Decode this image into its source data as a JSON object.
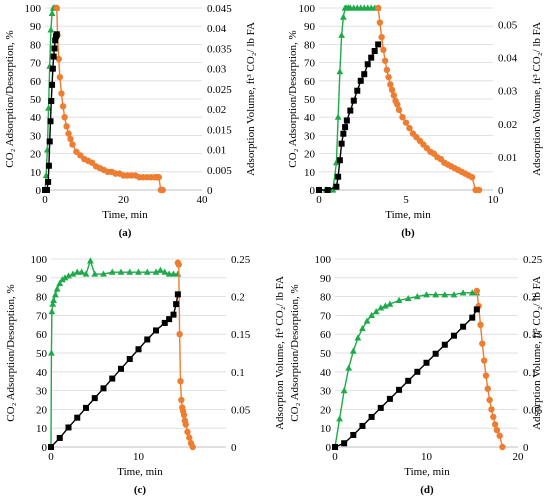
{
  "colors": {
    "adsorption": "#1faa4a",
    "desorption": "#ed7d31",
    "volume": "#000000",
    "grid": "#d9d9d9",
    "axis": "#bfbfbf"
  },
  "chart_data": [
    {
      "id": "a",
      "type": "scatter",
      "panel_label": "(a)",
      "xlabel": "Time, min",
      "ylabel_left": "CO₂ Adsorption/Desorption, %",
      "ylabel_right": "Adsorption Volume, ft³ CO₂/ lb FA",
      "xlim": [
        0,
        40
      ],
      "ylim": [
        0,
        100
      ],
      "y2lim": [
        0,
        0.045
      ],
      "x_ticks": [
        0,
        20,
        40
      ],
      "y_ticks": [
        0,
        10,
        20,
        30,
        40,
        50,
        60,
        70,
        80,
        90,
        100
      ],
      "y2_ticks": [
        0,
        0.005,
        0.01,
        0.015,
        0.02,
        0.025,
        0.03,
        0.035,
        0.04,
        0.045
      ],
      "y2_tick_labels": [
        "0",
        "0.005",
        "0.01",
        "0.015",
        "0.02",
        "0.025",
        "0.03",
        "0.035",
        "0.04",
        "0.045"
      ],
      "grid": true,
      "series": [
        {
          "key": "adsorption",
          "marker": "triangle",
          "axis": "left",
          "x": [
            0,
            0.3,
            0.6,
            0.9,
            1.2,
            1.5,
            1.8,
            2.1,
            2.4,
            2.7,
            3.0
          ],
          "y": [
            0,
            8,
            22,
            45,
            68,
            88,
            97,
            100,
            100,
            100,
            100
          ]
        },
        {
          "key": "desorption",
          "marker": "circle",
          "axis": "left",
          "x": [
            3.0,
            3.2,
            3.5,
            3.8,
            4.2,
            4.6,
            5.0,
            5.5,
            6.0,
            6.5,
            7.0,
            8.0,
            9.0,
            10.0,
            11.0,
            12.0,
            13.0,
            14.0,
            15.0,
            16.0,
            17.0,
            18.0,
            19.0,
            20.0,
            21.0,
            22.0,
            23.0,
            24.0,
            25.0,
            26.0,
            27.0,
            28.0,
            28.5,
            29.0,
            29.5,
            30.0
          ],
          "y": [
            100,
            85,
            72,
            62,
            53,
            46,
            40,
            35,
            31,
            28,
            25,
            21,
            19,
            17,
            16,
            15,
            13,
            12,
            11,
            10,
            10,
            9,
            9,
            8,
            8,
            8,
            8,
            7,
            7,
            7,
            7,
            7,
            7,
            7,
            0,
            0
          ]
        },
        {
          "key": "volume",
          "marker": "square",
          "axis": "right",
          "x": [
            0,
            0.5,
            0.8,
            1.0,
            1.2,
            1.4,
            1.6,
            1.8,
            2.0,
            2.2,
            2.4,
            2.6,
            2.8,
            3.0
          ],
          "y": [
            0,
            0,
            0.002,
            0.006,
            0.012,
            0.017,
            0.022,
            0.026,
            0.03,
            0.033,
            0.035,
            0.037,
            0.038,
            0.0385
          ]
        }
      ]
    },
    {
      "id": "b",
      "type": "scatter",
      "panel_label": "(b)",
      "xlabel": "Time, min",
      "ylabel_left": "CO₂ Adsorption/Desorption, %",
      "ylabel_right": "Adsorption Volume, ft³ CO₂/ lb FA",
      "xlim": [
        0,
        10
      ],
      "ylim": [
        0,
        100
      ],
      "y2lim": [
        0,
        0.055
      ],
      "x_ticks": [
        0,
        5,
        10
      ],
      "y_ticks": [
        0,
        10,
        20,
        30,
        40,
        50,
        60,
        70,
        80,
        90,
        100
      ],
      "y2_ticks": [
        0,
        0.01,
        0.02,
        0.03,
        0.04,
        0.05
      ],
      "y2_tick_labels": [
        "0",
        "0.01",
        "0.02",
        "0.03",
        "0.04",
        "0.05"
      ],
      "grid": true,
      "series": [
        {
          "key": "adsorption",
          "marker": "triangle",
          "axis": "left",
          "x": [
            0,
            0.4,
            0.8,
            1.0,
            1.1,
            1.2,
            1.3,
            1.4,
            1.5,
            1.6,
            1.7,
            1.8,
            2.0,
            2.2,
            2.4,
            2.6,
            2.8,
            3.0,
            3.2,
            3.4
          ],
          "y": [
            0,
            0,
            0,
            15,
            40,
            65,
            85,
            95,
            100,
            100,
            100,
            100,
            100,
            100,
            100,
            100,
            100,
            100,
            100,
            100
          ]
        },
        {
          "key": "desorption",
          "marker": "circle",
          "axis": "left",
          "x": [
            3.4,
            3.5,
            3.6,
            3.7,
            3.8,
            3.9,
            4.0,
            4.1,
            4.2,
            4.3,
            4.4,
            4.5,
            4.6,
            4.8,
            5.0,
            5.2,
            5.4,
            5.6,
            5.8,
            6.0,
            6.2,
            6.4,
            6.6,
            6.8,
            7.0,
            7.2,
            7.4,
            7.6,
            7.8,
            8.0,
            8.2,
            8.4,
            8.6,
            8.8,
            9.0,
            9.2
          ],
          "y": [
            100,
            92,
            84,
            77,
            71,
            66,
            62,
            58,
            55,
            52,
            49,
            47,
            44,
            40,
            37,
            34,
            31,
            29,
            27,
            25,
            23,
            21,
            20,
            18,
            17,
            15,
            14,
            13,
            12,
            11,
            10,
            9,
            8,
            7,
            0,
            0
          ]
        },
        {
          "key": "volume",
          "marker": "square",
          "axis": "right",
          "x": [
            0,
            0.5,
            1.0,
            1.1,
            1.2,
            1.3,
            1.4,
            1.5,
            1.6,
            1.8,
            2.0,
            2.2,
            2.4,
            2.6,
            2.8,
            3.0,
            3.2,
            3.4
          ],
          "y": [
            0,
            0,
            0.001,
            0.004,
            0.009,
            0.014,
            0.017,
            0.019,
            0.021,
            0.024,
            0.027,
            0.03,
            0.033,
            0.035,
            0.038,
            0.04,
            0.042,
            0.044
          ]
        }
      ]
    },
    {
      "id": "c",
      "type": "scatter",
      "panel_label": "(c)",
      "xlabel": "Time, min",
      "ylabel_left": "CO₂ Adsorption/Desorption, %",
      "ylabel_right": "Adsorption Volume, ft³ CO₂/ lb FA",
      "xlim": [
        0,
        20
      ],
      "ylim": [
        0,
        100
      ],
      "y2lim": [
        0,
        0.25
      ],
      "x_ticks": [
        0,
        10
      ],
      "y_ticks": [
        0,
        10,
        20,
        30,
        40,
        50,
        60,
        70,
        80,
        90,
        100
      ],
      "y2_ticks": [
        0,
        0.05,
        0.1,
        0.15,
        0.2,
        0.25
      ],
      "y2_tick_labels": [
        "0",
        "0.05",
        "0.1",
        "0.15",
        "0.2",
        "0.25"
      ],
      "grid": true,
      "series": [
        {
          "key": "adsorption",
          "marker": "triangle",
          "axis": "left",
          "x": [
            0,
            0.05,
            0.1,
            0.2,
            0.3,
            0.5,
            0.7,
            1.0,
            1.3,
            1.6,
            2.0,
            2.5,
            3.0,
            3.5,
            4.0,
            4.5,
            5.0,
            6.0,
            7.0,
            8.0,
            9.0,
            10.0,
            11.0,
            12.0,
            12.5,
            13.0,
            13.5,
            14.0,
            14.5
          ],
          "y": [
            0,
            50,
            72,
            76,
            78,
            81,
            84,
            87,
            89,
            90,
            91,
            92,
            93,
            93,
            92,
            99,
            92,
            92,
            93,
            93,
            93,
            93,
            93,
            93,
            94,
            93,
            92,
            92,
            92
          ]
        },
        {
          "key": "desorption",
          "marker": "circle",
          "axis": "left",
          "x": [
            14.5,
            14.6,
            14.7,
            14.8,
            14.9,
            15.0,
            15.1,
            15.2,
            15.3,
            15.4,
            15.6,
            15.8,
            16.0,
            16.2
          ],
          "y": [
            98,
            97,
            60,
            35,
            25,
            21,
            19,
            17,
            14,
            12,
            8,
            5,
            2,
            0
          ]
        },
        {
          "key": "volume",
          "marker": "square",
          "axis": "right",
          "x": [
            0,
            1,
            2,
            3,
            4,
            5,
            6,
            7,
            8,
            9,
            10,
            11,
            12,
            13,
            13.5,
            14,
            14.3,
            14.5
          ],
          "y": [
            0,
            0.012,
            0.026,
            0.039,
            0.052,
            0.065,
            0.078,
            0.091,
            0.104,
            0.117,
            0.13,
            0.143,
            0.155,
            0.165,
            0.17,
            0.176,
            0.19,
            0.203
          ]
        }
      ]
    },
    {
      "id": "d",
      "type": "scatter",
      "panel_label": "(d)",
      "xlabel": "Time, min",
      "ylabel_left": "CO₂ Adsorption/Desorption, %",
      "ylabel_right": "Adsorption Volume, ft³ CO₂/ lb FA",
      "xlim": [
        0,
        20
      ],
      "ylim": [
        0,
        100
      ],
      "y2lim": [
        0,
        0.25
      ],
      "x_ticks": [
        0,
        10,
        20
      ],
      "y_ticks": [
        0,
        10,
        20,
        30,
        40,
        50,
        60,
        70,
        80,
        90,
        100
      ],
      "y2_ticks": [
        0,
        0.05,
        0.1,
        0.15,
        0.2,
        0.25
      ],
      "y2_tick_labels": [
        "0",
        "0.05",
        "0.1",
        "0.15",
        "0.2",
        "0.25"
      ],
      "grid": true,
      "series": [
        {
          "key": "adsorption",
          "marker": "triangle",
          "axis": "left",
          "x": [
            0,
            0.5,
            1.0,
            1.5,
            2.0,
            2.5,
            3.0,
            3.5,
            4.0,
            4.5,
            5.0,
            5.5,
            6.0,
            7.0,
            8.0,
            9.0,
            10.0,
            11.0,
            12.0,
            13.0,
            14.0,
            15.0,
            15.5
          ],
          "y": [
            0,
            15,
            30,
            42,
            51,
            58,
            63,
            67,
            70,
            72,
            74,
            75,
            76,
            78,
            79,
            80,
            81,
            81,
            81,
            81,
            82,
            82,
            82
          ]
        },
        {
          "key": "desorption",
          "marker": "circle",
          "axis": "left",
          "x": [
            15.5,
            15.7,
            15.9,
            16.1,
            16.3,
            16.5,
            16.7,
            16.9,
            17.1,
            17.3,
            17.5,
            17.7,
            18.0,
            18.3
          ],
          "y": [
            83,
            75,
            65,
            55,
            46,
            38,
            31,
            25,
            20,
            16,
            12,
            9,
            6,
            0
          ]
        },
        {
          "key": "volume",
          "marker": "square",
          "axis": "right",
          "x": [
            0,
            1,
            2,
            3,
            4,
            5,
            6,
            7,
            8,
            9,
            10,
            11,
            12,
            13,
            14,
            15,
            15.5
          ],
          "y": [
            0,
            0.005,
            0.016,
            0.028,
            0.04,
            0.052,
            0.064,
            0.076,
            0.088,
            0.1,
            0.112,
            0.124,
            0.136,
            0.148,
            0.16,
            0.172,
            0.183
          ]
        }
      ]
    }
  ]
}
